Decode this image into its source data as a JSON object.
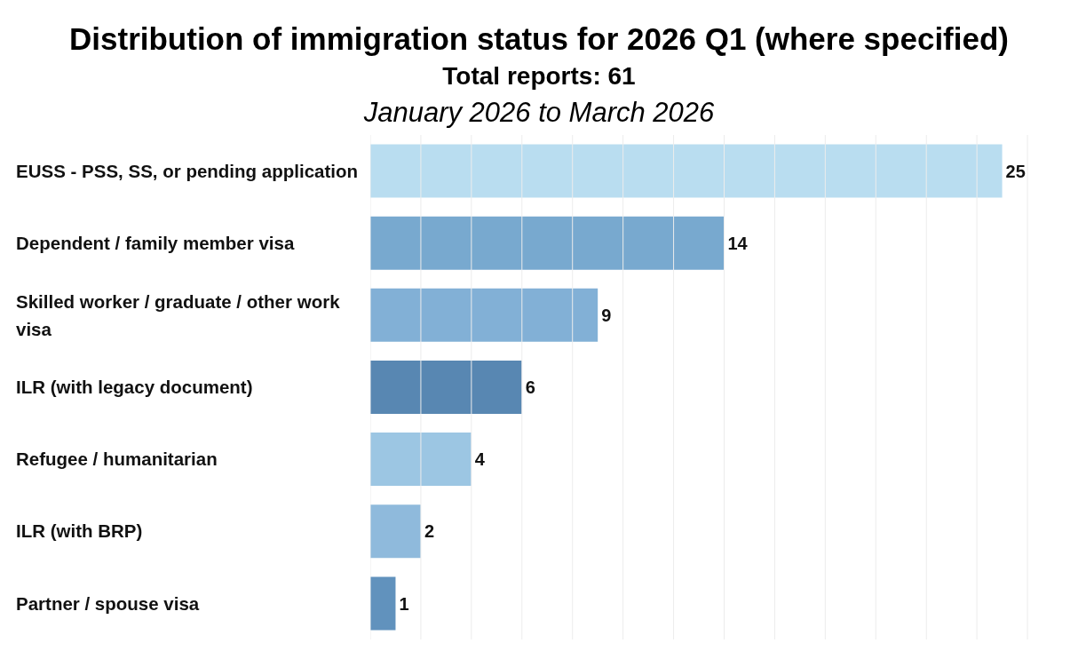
{
  "chart_data": {
    "type": "bar",
    "orientation": "horizontal",
    "title": "Distribution of immigration status for 2026 Q1 (where specified)",
    "subtitle": "Total reports: 61",
    "annotations": [
      "January 2026 to March 2026"
    ],
    "categories": [
      "EUSS - PSS, SS, or pending application",
      "Dependent / family member visa",
      "Skilled worker / graduate / other work visa",
      "ILR (with legacy document)",
      "Refugee / humanitarian",
      "ILR (with BRP)",
      "Partner / spouse visa"
    ],
    "values": [
      25,
      14,
      9,
      6,
      4,
      2,
      1
    ],
    "colors": [
      "#b9ddf0",
      "#78a9cf",
      "#82b0d6",
      "#5887b2",
      "#9cc6e3",
      "#8fbadc",
      "#6192bd"
    ],
    "xlim": [
      0,
      28
    ],
    "xticks": [
      {
        "value": 0,
        "label": null
      },
      {
        "value": 2,
        "label": null
      },
      {
        "value": 4,
        "label": null
      },
      {
        "value": 6,
        "label": null
      },
      {
        "value": 8,
        "label": null
      },
      {
        "value": 10,
        "label": null
      },
      {
        "value": 12,
        "label": null
      },
      {
        "value": 14,
        "label": null
      },
      {
        "value": 16,
        "label": null
      },
      {
        "value": 18,
        "label": null
      },
      {
        "value": 20,
        "label": null
      },
      {
        "value": 22,
        "label": null
      },
      {
        "value": 24,
        "label": null
      },
      {
        "value": 26,
        "label": null
      }
    ],
    "tick_labels": "y",
    "grid": "x",
    "data_labels": true
  }
}
